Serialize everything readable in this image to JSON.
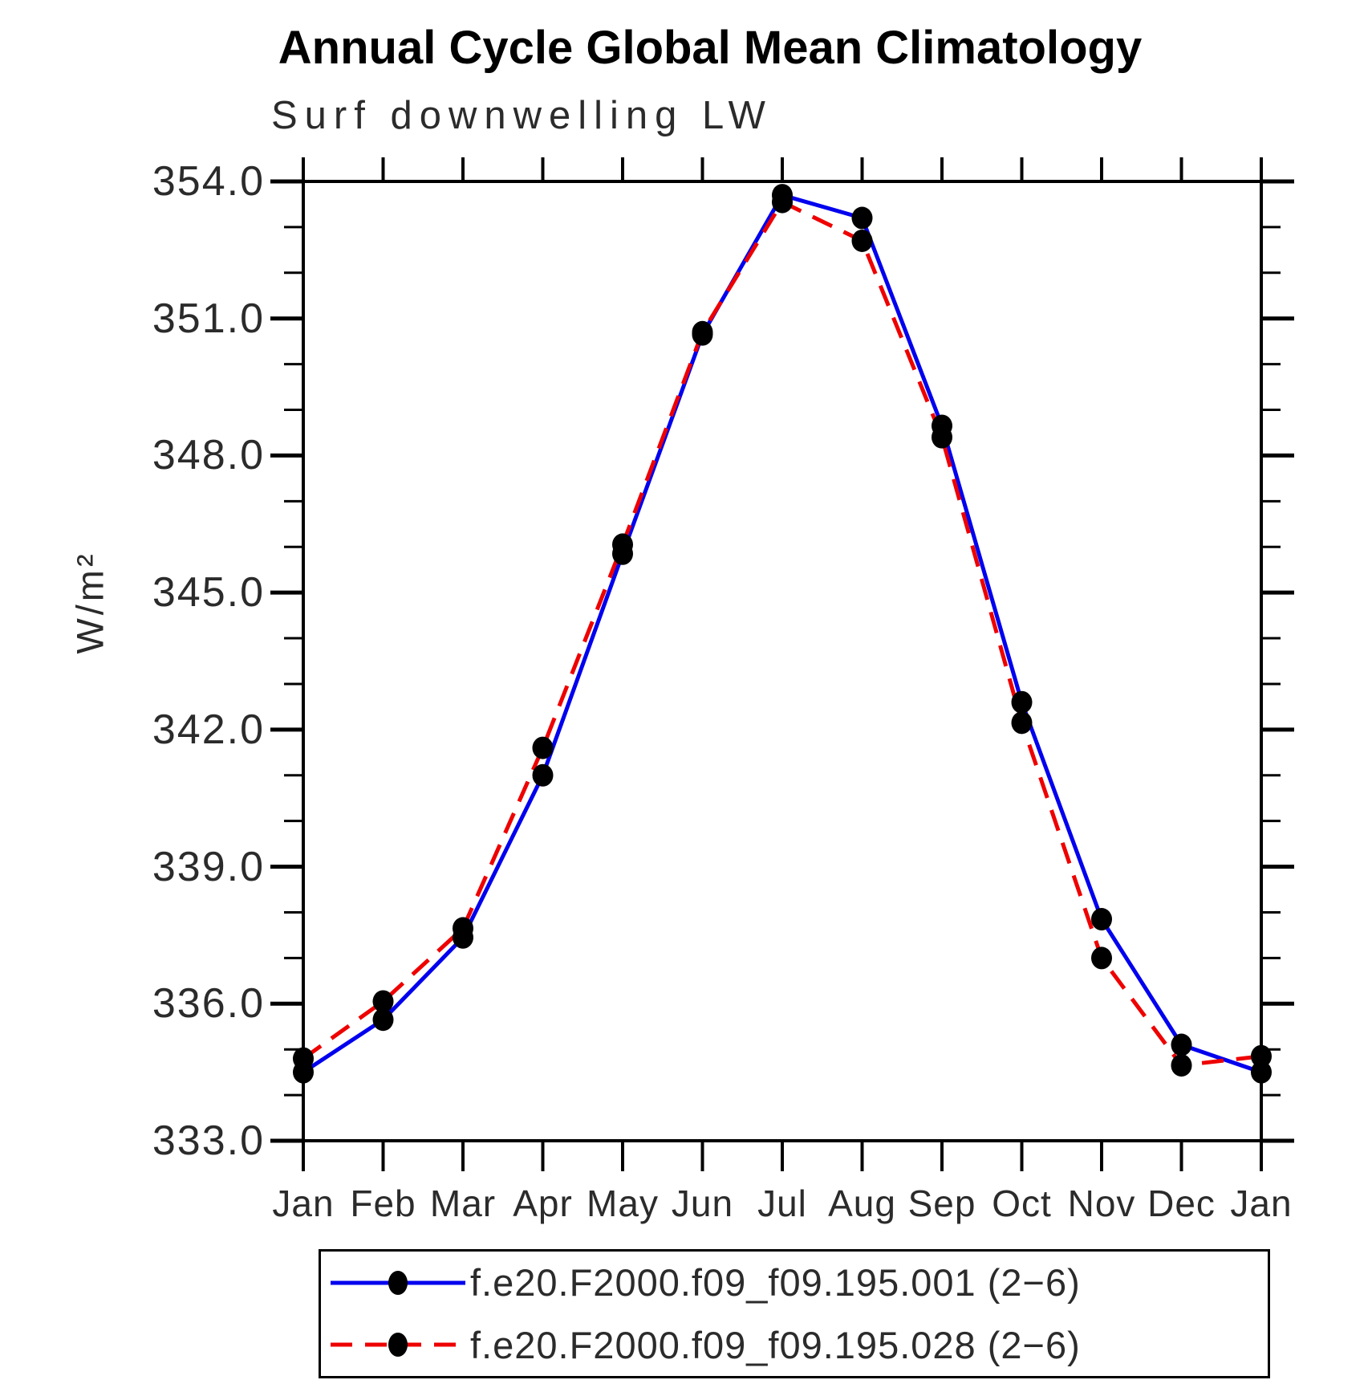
{
  "chart_data": {
    "type": "line",
    "title": "Annual Cycle Global Mean Climatology",
    "subtitle": "Surf downwelling LW",
    "ylabel": "W/m²",
    "x_categories": [
      "Jan",
      "Feb",
      "Mar",
      "Apr",
      "May",
      "Jun",
      "Jul",
      "Aug",
      "Sep",
      "Oct",
      "Nov",
      "Dec",
      "Jan"
    ],
    "ylim": [
      333.0,
      354.0
    ],
    "y_major_step": 3.0,
    "y_minor_step": 1.0,
    "y_tick_labels": [
      "333.0",
      "336.0",
      "339.0",
      "342.0",
      "345.0",
      "348.0",
      "351.0",
      "354.0"
    ],
    "grid": false,
    "legend_position": "bottom",
    "marker": {
      "shape": "circle",
      "color": "#000000",
      "radius": 14
    },
    "axis_color": "#000000",
    "series": [
      {
        "name": "f.e20.F2000.f09_f09.195.001 (2−6)",
        "color": "#0000ee",
        "style": "solid",
        "values": [
          334.5,
          335.65,
          337.45,
          341.0,
          345.85,
          350.65,
          353.7,
          353.2,
          348.65,
          342.6,
          337.85,
          335.1,
          334.5
        ]
      },
      {
        "name": "f.e20.F2000.f09_f09.195.028 (2−6)",
        "color": "#ee0000",
        "style": "dashed",
        "values": [
          334.8,
          336.05,
          337.65,
          341.6,
          346.05,
          350.7,
          353.55,
          352.7,
          348.4,
          342.15,
          337.0,
          334.65,
          334.85
        ]
      }
    ]
  }
}
